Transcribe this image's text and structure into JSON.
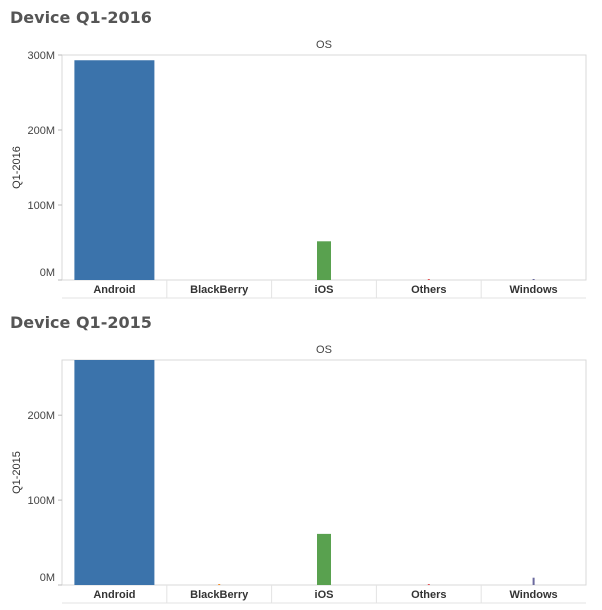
{
  "chart_data": [
    {
      "type": "bar",
      "title": "Device Q1-2016",
      "column_header": "OS",
      "ylabel": "Q1-2016",
      "categories": [
        "Android",
        "BlackBerry",
        "iOS",
        "Others",
        "Windows"
      ],
      "values": [
        293000000,
        0,
        51600000,
        1000000,
        1300000
      ],
      "colors": [
        "#3b73ab",
        "#f28e2b",
        "#59a14f",
        "#e15759",
        "#6c6a9e"
      ],
      "ylim": [
        0,
        300000000
      ],
      "yticks": [
        0,
        100000000,
        200000000,
        300000000
      ],
      "ytick_labels": [
        "0M",
        "100M",
        "200M",
        "300M"
      ],
      "grid": false
    },
    {
      "type": "bar",
      "title": "Device Q1-2015",
      "column_header": "OS",
      "ylabel": "Q1-2015",
      "categories": [
        "Android",
        "BlackBerry",
        "iOS",
        "Others",
        "Windows"
      ],
      "values": [
        265000000,
        600000,
        60200000,
        1000000,
        8600000
      ],
      "colors": [
        "#3b73ab",
        "#f28e2b",
        "#59a14f",
        "#e15759",
        "#6c6a9e"
      ],
      "ylim": [
        0,
        265000000
      ],
      "yticks": [
        0,
        100000000,
        200000000
      ],
      "ytick_labels": [
        "0M",
        "100M",
        "200M"
      ],
      "grid": false
    }
  ]
}
